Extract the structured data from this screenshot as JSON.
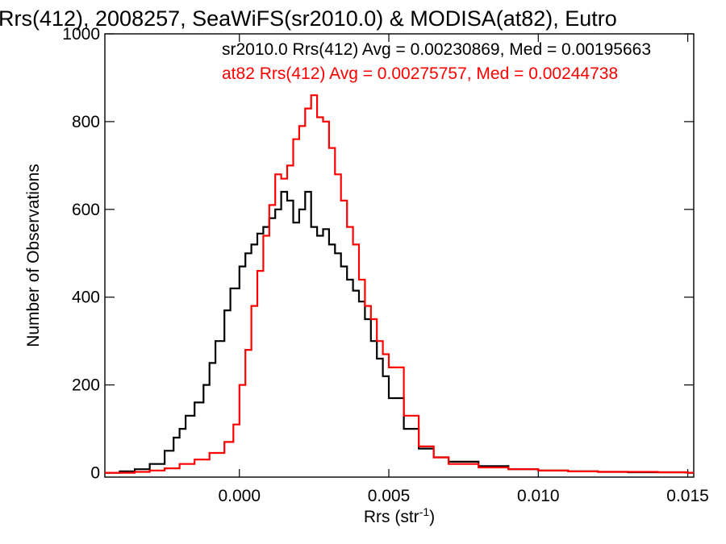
{
  "chart_data": {
    "type": "histogram",
    "title": "Rrs(412), 2008257, SeaWiFS(sr2010.0) & MODISA(at82), Eutro",
    "xlabel": "Rrs (str",
    "xlabel_sup": "-1",
    "xlabel_close": ")",
    "ylabel": "Number of Observations",
    "xlim": [
      -0.0045,
      0.0152
    ],
    "ylim": [
      -10,
      1000
    ],
    "xticks": [
      0.0,
      0.005,
      0.01,
      0.015
    ],
    "xtick_labels": [
      "0.000",
      "0.005",
      "0.010",
      "0.015"
    ],
    "yticks": [
      0,
      200,
      400,
      600,
      800,
      1000
    ],
    "ytick_labels": [
      "0",
      "200",
      "400",
      "600",
      "800",
      "1000"
    ],
    "grid": false,
    "legend_placement": "top-right",
    "series": [
      {
        "name": "sr2010.0 Rrs(412) Avg = 0.00230869, Med = 0.00195663",
        "color": "#000000",
        "x": [
          -0.0045,
          -0.004,
          -0.0035,
          -0.003,
          -0.0025,
          -0.0022,
          -0.002,
          -0.0018,
          -0.0015,
          -0.0012,
          -0.001,
          -0.0008,
          -0.0005,
          -0.0003,
          0.0,
          0.0002,
          0.0004,
          0.0006,
          0.0008,
          0.001,
          0.0012,
          0.0014,
          0.0016,
          0.0018,
          0.002,
          0.0022,
          0.0024,
          0.0026,
          0.0028,
          0.003,
          0.0032,
          0.0034,
          0.0036,
          0.0038,
          0.004,
          0.0042,
          0.0044,
          0.0046,
          0.0048,
          0.005,
          0.0055,
          0.006,
          0.0065,
          0.007,
          0.008,
          0.009,
          0.01,
          0.011,
          0.012,
          0.013,
          0.014,
          0.015
        ],
        "y": [
          0,
          3,
          8,
          20,
          50,
          80,
          100,
          130,
          160,
          200,
          250,
          300,
          370,
          420,
          470,
          500,
          520,
          545,
          560,
          580,
          600,
          640,
          620,
          570,
          600,
          640,
          560,
          540,
          555,
          520,
          500,
          470,
          440,
          415,
          390,
          350,
          300,
          260,
          220,
          170,
          100,
          55,
          35,
          25,
          15,
          8,
          5,
          3,
          2,
          1,
          1,
          0
        ]
      },
      {
        "name": "at82 Rrs(412) Avg = 0.00275757, Med = 0.00244738",
        "color": "#ff0000",
        "x": [
          -0.0045,
          -0.004,
          -0.0035,
          -0.003,
          -0.0025,
          -0.002,
          -0.0015,
          -0.001,
          -0.0005,
          -0.0002,
          0.0,
          0.0002,
          0.0004,
          0.0006,
          0.0008,
          0.001,
          0.0012,
          0.0014,
          0.0016,
          0.0018,
          0.002,
          0.0022,
          0.0024,
          0.0026,
          0.0028,
          0.003,
          0.0032,
          0.0034,
          0.0036,
          0.0038,
          0.004,
          0.0042,
          0.0044,
          0.0046,
          0.0048,
          0.005,
          0.0055,
          0.006,
          0.0065,
          0.007,
          0.008,
          0.009,
          0.01,
          0.011,
          0.012,
          0.013,
          0.014,
          0.015
        ],
        "y": [
          0,
          0,
          2,
          5,
          10,
          20,
          30,
          45,
          70,
          110,
          200,
          280,
          380,
          460,
          540,
          610,
          680,
          670,
          700,
          760,
          790,
          830,
          860,
          810,
          800,
          740,
          680,
          620,
          560,
          520,
          440,
          380,
          350,
          300,
          270,
          240,
          130,
          60,
          35,
          20,
          12,
          8,
          5,
          3,
          2,
          2,
          1,
          0
        ]
      }
    ]
  }
}
